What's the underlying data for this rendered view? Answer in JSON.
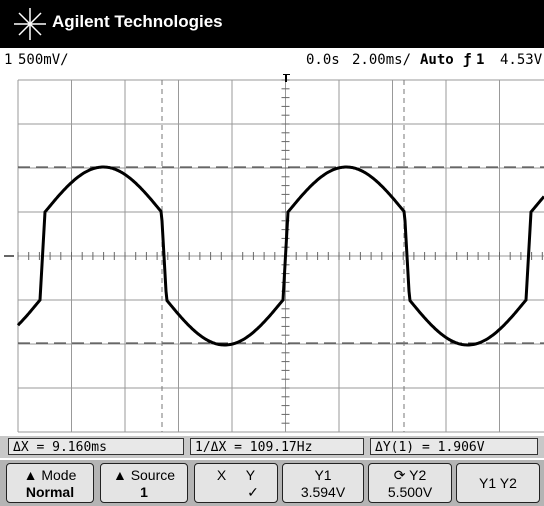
{
  "header": {
    "brand": "Agilent Technologies"
  },
  "status": {
    "channel": "1",
    "scale": "500mV/",
    "delay": "0.0s",
    "timebase": "2.00ms/",
    "mode": "Auto",
    "trigger_source": "1",
    "trigger_level": "4.53V"
  },
  "measurements": [
    "ΔX = 9.160ms",
    "1/ΔX = 109.17Hz",
    "ΔY(1) = 1.906V"
  ],
  "softkeys": [
    {
      "label": "Mode",
      "value": "Normal"
    },
    {
      "label": "Source",
      "value": "1"
    },
    {
      "options": [
        "X",
        "Y"
      ]
    },
    {
      "label": "Y1",
      "value": "3.594V"
    },
    {
      "label": "Y2",
      "value": "5.500V"
    },
    {
      "label": "Y1 Y2"
    }
  ]
}
